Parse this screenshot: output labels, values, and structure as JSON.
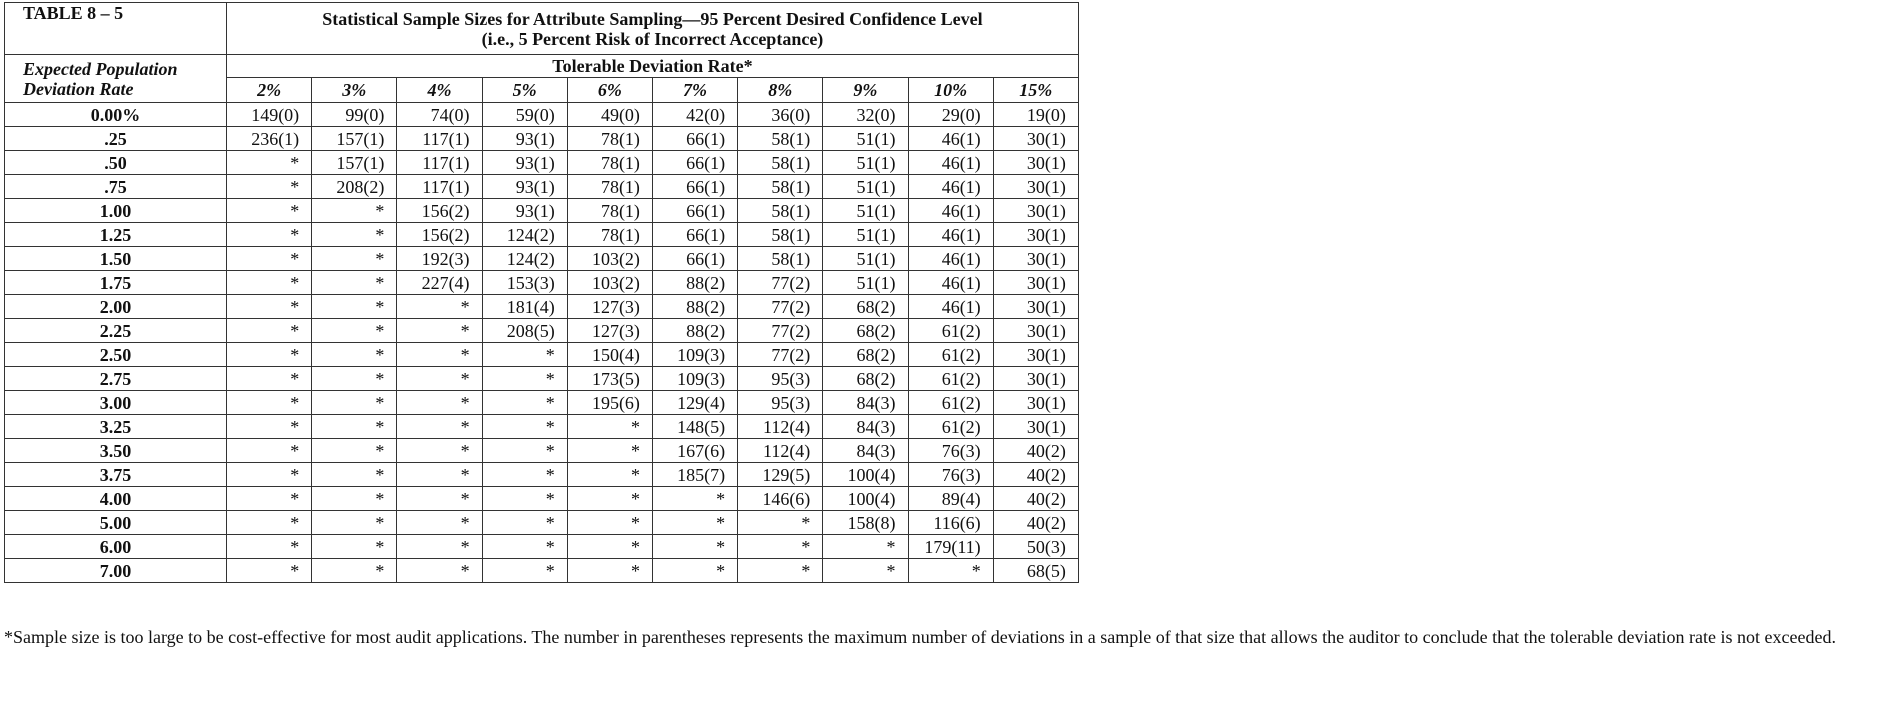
{
  "table": {
    "label": "TABLE 8 – 5",
    "title_lines": [
      "Statistical Sample Sizes for Attribute Sampling—95 Percent Desired Confidence Level",
      "(i.e., 5 Percent Risk of Incorrect Acceptance)"
    ],
    "row_header_lines": [
      "Expected Population",
      "Deviation Rate"
    ],
    "column_group": "Tolerable Deviation Rate*",
    "columns": [
      "2%",
      "3%",
      "4%",
      "5%",
      "6%",
      "7%",
      "8%",
      "9%",
      "10%",
      "15%"
    ],
    "rows": [
      [
        "0.00%",
        "149(0)",
        "99(0)",
        "74(0)",
        "59(0)",
        "49(0)",
        "42(0)",
        "36(0)",
        "32(0)",
        "29(0)",
        "19(0)"
      ],
      [
        ".25",
        "236(1)",
        "157(1)",
        "117(1)",
        "93(1)",
        "78(1)",
        "66(1)",
        "58(1)",
        "51(1)",
        "46(1)",
        "30(1)"
      ],
      [
        ".50",
        "*",
        "157(1)",
        "117(1)",
        "93(1)",
        "78(1)",
        "66(1)",
        "58(1)",
        "51(1)",
        "46(1)",
        "30(1)"
      ],
      [
        ".75",
        "*",
        "208(2)",
        "117(1)",
        "93(1)",
        "78(1)",
        "66(1)",
        "58(1)",
        "51(1)",
        "46(1)",
        "30(1)"
      ],
      [
        "1.00",
        "*",
        "*",
        "156(2)",
        "93(1)",
        "78(1)",
        "66(1)",
        "58(1)",
        "51(1)",
        "46(1)",
        "30(1)"
      ],
      [
        "1.25",
        "*",
        "*",
        "156(2)",
        "124(2)",
        "78(1)",
        "66(1)",
        "58(1)",
        "51(1)",
        "46(1)",
        "30(1)"
      ],
      [
        "1.50",
        "*",
        "*",
        "192(3)",
        "124(2)",
        "103(2)",
        "66(1)",
        "58(1)",
        "51(1)",
        "46(1)",
        "30(1)"
      ],
      [
        "1.75",
        "*",
        "*",
        "227(4)",
        "153(3)",
        "103(2)",
        "88(2)",
        "77(2)",
        "51(1)",
        "46(1)",
        "30(1)"
      ],
      [
        "2.00",
        "*",
        "*",
        "*",
        "181(4)",
        "127(3)",
        "88(2)",
        "77(2)",
        "68(2)",
        "46(1)",
        "30(1)"
      ],
      [
        "2.25",
        "*",
        "*",
        "*",
        "208(5)",
        "127(3)",
        "88(2)",
        "77(2)",
        "68(2)",
        "61(2)",
        "30(1)"
      ],
      [
        "2.50",
        "*",
        "*",
        "*",
        "*",
        "150(4)",
        "109(3)",
        "77(2)",
        "68(2)",
        "61(2)",
        "30(1)"
      ],
      [
        "2.75",
        "*",
        "*",
        "*",
        "*",
        "173(5)",
        "109(3)",
        "95(3)",
        "68(2)",
        "61(2)",
        "30(1)"
      ],
      [
        "3.00",
        "*",
        "*",
        "*",
        "*",
        "195(6)",
        "129(4)",
        "95(3)",
        "84(3)",
        "61(2)",
        "30(1)"
      ],
      [
        "3.25",
        "*",
        "*",
        "*",
        "*",
        "*",
        "148(5)",
        "112(4)",
        "84(3)",
        "61(2)",
        "30(1)"
      ],
      [
        "3.50",
        "*",
        "*",
        "*",
        "*",
        "*",
        "167(6)",
        "112(4)",
        "84(3)",
        "76(3)",
        "40(2)"
      ],
      [
        "3.75",
        "*",
        "*",
        "*",
        "*",
        "*",
        "185(7)",
        "129(5)",
        "100(4)",
        "76(3)",
        "40(2)"
      ],
      [
        "4.00",
        "*",
        "*",
        "*",
        "*",
        "*",
        "*",
        "146(6)",
        "100(4)",
        "89(4)",
        "40(2)"
      ],
      [
        "5.00",
        "*",
        "*",
        "*",
        "*",
        "*",
        "*",
        "*",
        "158(8)",
        "116(6)",
        "40(2)"
      ],
      [
        "6.00",
        "*",
        "*",
        "*",
        "*",
        "*",
        "*",
        "*",
        "*",
        "179(11)",
        "50(3)"
      ],
      [
        "7.00",
        "*",
        "*",
        "*",
        "*",
        "*",
        "*",
        "*",
        "*",
        "*",
        "68(5)"
      ]
    ]
  },
  "footnote": "*Sample size is too large to be cost-effective for most audit applications. The number in parentheses represents the maximum number of deviations in a sample of that size that allows the auditor to conclude that the tolerable deviation rate is not exceeded."
}
